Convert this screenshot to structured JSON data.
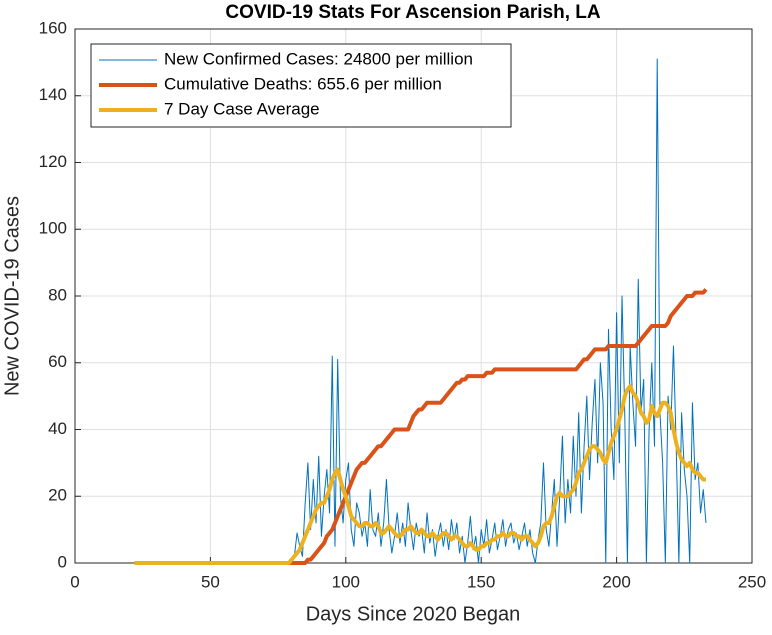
{
  "chart_data": {
    "type": "line",
    "title": "COVID-19 Stats For Ascension Parish, LA",
    "x_label": "Days Since 2020 Began",
    "y_label": "New COVID-19 Cases",
    "xlim": [
      0,
      250
    ],
    "xticks": [
      0,
      50,
      100,
      150,
      200,
      250
    ],
    "ylim": [
      0,
      160
    ],
    "yticks": [
      0,
      20,
      40,
      60,
      80,
      100,
      120,
      140,
      160
    ],
    "grid": true,
    "legend": "top-left",
    "x": [
      22,
      23,
      24,
      25,
      26,
      27,
      28,
      29,
      30,
      31,
      32,
      33,
      34,
      35,
      36,
      37,
      38,
      39,
      40,
      41,
      42,
      43,
      44,
      45,
      46,
      47,
      48,
      49,
      50,
      51,
      52,
      53,
      54,
      55,
      56,
      57,
      58,
      59,
      60,
      61,
      62,
      63,
      64,
      65,
      66,
      67,
      68,
      69,
      70,
      71,
      72,
      73,
      74,
      75,
      76,
      77,
      78,
      79,
      80,
      81,
      82,
      83,
      84,
      85,
      86,
      87,
      88,
      89,
      90,
      91,
      92,
      93,
      94,
      95,
      96,
      97,
      98,
      99,
      100,
      101,
      102,
      103,
      104,
      105,
      106,
      107,
      108,
      109,
      110,
      111,
      112,
      113,
      114,
      115,
      116,
      117,
      118,
      119,
      120,
      121,
      122,
      123,
      124,
      125,
      126,
      127,
      128,
      129,
      130,
      131,
      132,
      133,
      134,
      135,
      136,
      137,
      138,
      139,
      140,
      141,
      142,
      143,
      144,
      145,
      146,
      147,
      148,
      149,
      150,
      151,
      152,
      153,
      154,
      155,
      156,
      157,
      158,
      159,
      160,
      161,
      162,
      163,
      164,
      165,
      166,
      167,
      168,
      169,
      170,
      171,
      172,
      173,
      174,
      175,
      176,
      177,
      178,
      179,
      180,
      181,
      182,
      183,
      184,
      185,
      186,
      187,
      188,
      189,
      190,
      191,
      192,
      193,
      194,
      195,
      196,
      197,
      198,
      199,
      200,
      201,
      202,
      203,
      204,
      205,
      206,
      207,
      208,
      209,
      210,
      211,
      212,
      213,
      214,
      215,
      216,
      217,
      218,
      219,
      220,
      221,
      222,
      223,
      224,
      225,
      226,
      227,
      228,
      229,
      230,
      231,
      232,
      233
    ],
    "series": [
      {
        "name": "New Confirmed Cases: 24800 per million",
        "color": "#0072bd",
        "width": 1,
        "values": [
          0,
          0,
          0,
          0,
          0,
          0,
          0,
          0,
          0,
          0,
          0,
          0,
          0,
          0,
          0,
          0,
          0,
          0,
          0,
          0,
          0,
          0,
          0,
          0,
          0,
          0,
          0,
          0,
          0,
          0,
          0,
          0,
          0,
          0,
          0,
          0,
          0,
          0,
          0,
          0,
          0,
          0,
          0,
          0,
          0,
          0,
          0,
          0,
          0,
          0,
          0,
          0,
          0,
          0,
          0,
          0,
          0,
          0,
          0,
          2,
          9,
          5,
          2,
          18,
          30,
          10,
          25,
          12,
          32,
          8,
          20,
          28,
          15,
          62,
          5,
          61,
          20,
          12,
          25,
          30,
          10,
          5,
          18,
          15,
          8,
          12,
          5,
          22,
          10,
          8,
          15,
          5,
          12,
          25,
          10,
          3,
          8,
          15,
          6,
          12,
          5,
          18,
          10,
          4,
          12,
          8,
          10,
          3,
          15,
          6,
          10,
          2,
          8,
          12,
          5,
          10,
          4,
          13,
          7,
          12,
          3,
          8,
          0,
          6,
          14,
          4,
          8,
          0,
          10,
          5,
          13,
          3,
          7,
          12,
          4,
          8,
          13,
          5,
          10,
          12,
          6,
          9,
          4,
          8,
          12,
          5,
          10,
          3,
          0,
          7,
          12,
          30,
          10,
          5,
          15,
          25,
          5,
          20,
          38,
          12,
          25,
          15,
          38,
          20,
          45,
          15,
          35,
          50,
          25,
          42,
          55,
          30,
          60,
          48,
          0,
          70,
          40,
          25,
          75,
          30,
          80,
          45,
          0,
          65,
          48,
          35,
          85,
          45,
          55,
          0,
          40,
          60,
          35,
          151,
          45,
          30,
          0,
          50,
          40,
          65,
          35,
          0,
          45,
          28,
          20,
          0,
          48,
          25,
          30,
          15,
          22,
          12
        ]
      },
      {
        "name": "Cumulative Deaths: 655.6 per million",
        "color": "#d95319",
        "width": 4,
        "values": [
          0,
          0,
          0,
          0,
          0,
          0,
          0,
          0,
          0,
          0,
          0,
          0,
          0,
          0,
          0,
          0,
          0,
          0,
          0,
          0,
          0,
          0,
          0,
          0,
          0,
          0,
          0,
          0,
          0,
          0,
          0,
          0,
          0,
          0,
          0,
          0,
          0,
          0,
          0,
          0,
          0,
          0,
          0,
          0,
          0,
          0,
          0,
          0,
          0,
          0,
          0,
          0,
          0,
          0,
          0,
          0,
          0,
          0,
          0,
          0,
          0,
          0,
          0,
          0,
          1,
          1,
          2,
          3,
          4,
          5,
          6,
          8,
          9,
          10,
          12,
          14,
          16,
          18,
          20,
          22,
          24,
          26,
          28,
          29,
          30,
          30,
          31,
          32,
          33,
          34,
          35,
          35,
          36,
          37,
          38,
          39,
          40,
          40,
          40,
          40,
          40,
          40,
          42,
          44,
          45,
          46,
          46,
          47,
          48,
          48,
          48,
          48,
          48,
          48,
          49,
          50,
          51,
          52,
          53,
          54,
          54,
          55,
          55,
          56,
          56,
          56,
          56,
          56,
          56,
          56,
          57,
          57,
          57,
          58,
          58,
          58,
          58,
          58,
          58,
          58,
          58,
          58,
          58,
          58,
          58,
          58,
          58,
          58,
          58,
          58,
          58,
          58,
          58,
          58,
          58,
          58,
          58,
          58,
          58,
          58,
          58,
          58,
          58,
          58,
          59,
          60,
          61,
          61,
          62,
          63,
          64,
          64,
          64,
          64,
          64,
          65,
          65,
          65,
          65,
          65,
          65,
          65,
          65,
          65,
          65,
          65,
          66,
          67,
          68,
          69,
          70,
          71,
          71,
          71,
          71,
          71,
          71,
          72,
          74,
          75,
          76,
          77,
          78,
          79,
          80,
          80,
          80,
          81,
          81,
          81,
          81,
          82
        ]
      },
      {
        "name": "7 Day Case Average",
        "color": "#edb120",
        "width": 4,
        "values": [
          0,
          0,
          0,
          0,
          0,
          0,
          0,
          0,
          0,
          0,
          0,
          0,
          0,
          0,
          0,
          0,
          0,
          0,
          0,
          0,
          0,
          0,
          0,
          0,
          0,
          0,
          0,
          0,
          0,
          0,
          0,
          0,
          0,
          0,
          0,
          0,
          0,
          0,
          0,
          0,
          0,
          0,
          0,
          0,
          0,
          0,
          0,
          0,
          0,
          0,
          0,
          0,
          0,
          0,
          0,
          0,
          0,
          0,
          1,
          2,
          3,
          4,
          6,
          8,
          10,
          12,
          14,
          16,
          17,
          18,
          18,
          20,
          22,
          25,
          27,
          28,
          25,
          22,
          20,
          17,
          14,
          13,
          12,
          11,
          11,
          12,
          12,
          11,
          11,
          12,
          11,
          9,
          9,
          10,
          11,
          10,
          9,
          8,
          8,
          9,
          10,
          10,
          11,
          10,
          9,
          9,
          10,
          9,
          8,
          8,
          9,
          8,
          7,
          8,
          9,
          9,
          8,
          7,
          8,
          8,
          7,
          6,
          5,
          5,
          6,
          5,
          4,
          4,
          5,
          5,
          6,
          6,
          7,
          7,
          8,
          8,
          9,
          8,
          8,
          9,
          9,
          8,
          8,
          7,
          8,
          8,
          7,
          6,
          5,
          6,
          8,
          11,
          12,
          12,
          14,
          17,
          20,
          21,
          20,
          20,
          20,
          21,
          22,
          24,
          27,
          28,
          30,
          32,
          34,
          35,
          35,
          34,
          33,
          31,
          30,
          33,
          36,
          38,
          40,
          43,
          46,
          50,
          52,
          53,
          51,
          50,
          48,
          45,
          44,
          42,
          43,
          47,
          45,
          44,
          46,
          48,
          48,
          47,
          45,
          40,
          36,
          33,
          31,
          30,
          29,
          30,
          28,
          27,
          27,
          26,
          25,
          25
        ]
      }
    ]
  }
}
